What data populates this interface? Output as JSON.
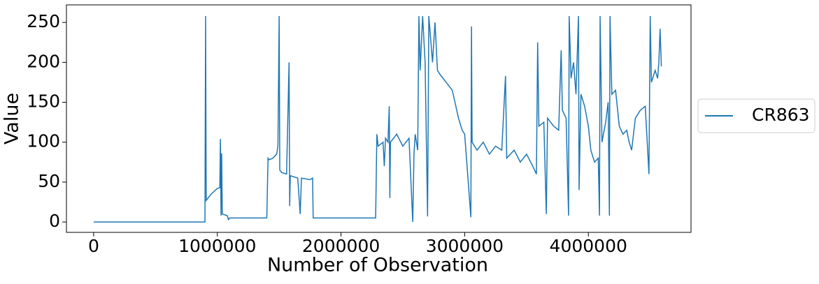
{
  "chart_data": {
    "type": "line",
    "x_label": "Number of Observation",
    "y_label": "Value",
    "x": [
      0,
      900000,
      905000,
      910000,
      950000,
      1000000,
      1020000,
      1025000,
      1030000,
      1035000,
      1040000,
      1080000,
      1090000,
      1100000,
      1400000,
      1410000,
      1420000,
      1450000,
      1480000,
      1490000,
      1500000,
      1505000,
      1520000,
      1560000,
      1580000,
      1585000,
      1590000,
      1650000,
      1670000,
      1680000,
      1750000,
      1770000,
      1775000,
      2280000,
      2290000,
      2300000,
      2340000,
      2350000,
      2360000,
      2380000,
      2390000,
      2395000,
      2400000,
      2450000,
      2500000,
      2550000,
      2580000,
      2590000,
      2600000,
      2620000,
      2630000,
      2640000,
      2660000,
      2680000,
      2700000,
      2710000,
      2740000,
      2760000,
      2780000,
      2800000,
      2850000,
      2900000,
      2950000,
      2980000,
      3000000,
      3050000,
      3055000,
      3060000,
      3100000,
      3150000,
      3200000,
      3250000,
      3300000,
      3330000,
      3340000,
      3400000,
      3450000,
      3500000,
      3550000,
      3580000,
      3590000,
      3600000,
      3640000,
      3660000,
      3670000,
      3720000,
      3760000,
      3780000,
      3790000,
      3820000,
      3840000,
      3845000,
      3860000,
      3880000,
      3900000,
      3920000,
      3925000,
      3940000,
      3970000,
      4000000,
      4020000,
      4050000,
      4080000,
      4090000,
      4095000,
      4110000,
      4140000,
      4160000,
      4170000,
      4175000,
      4190000,
      4220000,
      4250000,
      4280000,
      4310000,
      4330000,
      4350000,
      4380000,
      4420000,
      4460000,
      4490000,
      4500000,
      4510000,
      4540000,
      4560000,
      4570000,
      4580000,
      4590000
    ],
    "series": [
      {
        "name": "CR863",
        "color": "#1f77b4",
        "values": [
          0,
          0,
          258,
          27,
          35,
          42,
          43,
          104,
          8,
          86,
          10,
          8,
          3,
          5,
          5,
          80,
          78,
          80,
          85,
          95,
          258,
          65,
          62,
          60,
          200,
          20,
          58,
          55,
          10,
          55,
          53,
          55,
          5,
          5,
          110,
          95,
          100,
          70,
          105,
          100,
          145,
          30,
          100,
          110,
          95,
          105,
          0,
          85,
          110,
          90,
          258,
          190,
          258,
          200,
          7,
          258,
          200,
          250,
          190,
          185,
          175,
          165,
          130,
          115,
          110,
          6,
          245,
          100,
          90,
          100,
          85,
          95,
          90,
          183,
          80,
          90,
          75,
          85,
          70,
          60,
          225,
          120,
          125,
          10,
          130,
          120,
          115,
          215,
          140,
          130,
          8,
          258,
          180,
          200,
          160,
          258,
          40,
          160,
          145,
          120,
          90,
          75,
          80,
          8,
          258,
          100,
          125,
          150,
          8,
          258,
          160,
          165,
          120,
          110,
          115,
          100,
          90,
          130,
          140,
          145,
          60,
          258,
          175,
          190,
          180,
          200,
          242,
          195
        ]
      }
    ],
    "xlim": [
      -220000,
      4830000
    ],
    "xticks": [
      0,
      1000000,
      2000000,
      3000000,
      4000000
    ],
    "ylim": [
      -13,
      272
    ],
    "yticks": [
      0,
      50,
      100,
      150,
      200,
      250
    ],
    "legend": "right"
  }
}
